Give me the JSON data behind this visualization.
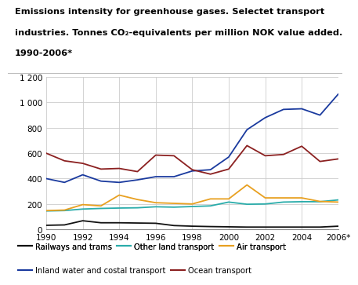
{
  "title_line1": "Emissions intensity for greenhouse gases. Selectet transport",
  "title_line2": "industries. Tonnes CO₂-equivalents per million NOK value added.",
  "title_line3": "1990-2006*",
  "years": [
    1990,
    1991,
    1992,
    1993,
    1994,
    1995,
    1996,
    1997,
    1998,
    1999,
    2000,
    2001,
    2002,
    2003,
    2004,
    2005,
    2006
  ],
  "railways": [
    32,
    35,
    68,
    52,
    52,
    50,
    48,
    30,
    25,
    22,
    20,
    18,
    18,
    18,
    18,
    18,
    25
  ],
  "other_land": [
    145,
    148,
    160,
    165,
    168,
    170,
    178,
    175,
    180,
    185,
    215,
    198,
    200,
    215,
    218,
    218,
    232
  ],
  "air": [
    148,
    152,
    195,
    185,
    270,
    235,
    210,
    205,
    200,
    240,
    240,
    350,
    248,
    248,
    248,
    220,
    215
  ],
  "inland_water": [
    400,
    370,
    430,
    380,
    370,
    390,
    415,
    415,
    460,
    470,
    570,
    785,
    880,
    945,
    950,
    900,
    1065
  ],
  "ocean": [
    600,
    540,
    520,
    475,
    480,
    455,
    585,
    580,
    470,
    435,
    475,
    660,
    580,
    590,
    655,
    535,
    555
  ],
  "colors": {
    "railways": "#111111",
    "other_land": "#2aacaa",
    "air": "#e8a020",
    "inland_water": "#1a3a9e",
    "ocean": "#8b2020"
  },
  "ylim": [
    0,
    1200
  ],
  "yticks": [
    0,
    200,
    400,
    600,
    800,
    1000,
    1200
  ],
  "ytick_labels": [
    "0",
    "200",
    "400",
    "600",
    "800",
    "1 000",
    "1 200"
  ],
  "xtick_positions": [
    1990,
    1992,
    1994,
    1996,
    1998,
    2000,
    2002,
    2004,
    2006
  ],
  "xtick_labels": [
    "1990",
    "1992",
    "1994",
    "1996",
    "1998",
    "2000",
    "2002",
    "2004",
    "2006*"
  ],
  "legend_row1": [
    {
      "label": "Railways and trams",
      "color": "#111111"
    },
    {
      "label": "Other land transport",
      "color": "#2aacaa"
    },
    {
      "label": "Air transport",
      "color": "#e8a020"
    }
  ],
  "legend_row2": [
    {
      "label": "Inland water and costal transport",
      "color": "#1a3a9e"
    },
    {
      "label": "Ocean transport",
      "color": "#8b2020"
    }
  ],
  "background_color": "#ffffff",
  "grid_color": "#cccccc"
}
